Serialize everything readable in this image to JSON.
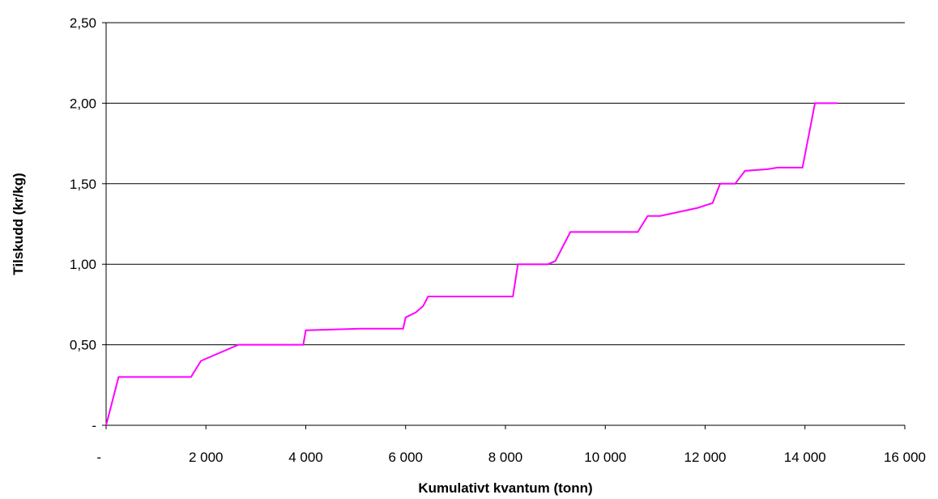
{
  "chart_data": {
    "type": "line",
    "title": "",
    "xlabel": "Kumulativt kvantum (tonn)",
    "ylabel": "Tilskudd (kr/kg)",
    "xlim": [
      0,
      16000
    ],
    "ylim": [
      0,
      2.5
    ],
    "x_ticks": [
      0,
      2000,
      4000,
      6000,
      8000,
      10000,
      12000,
      14000,
      16000
    ],
    "x_tick_labels": [
      "-",
      "2 000",
      "4 000",
      "6 000",
      "8 000",
      "10 000",
      "12 000",
      "14 000",
      "16 000"
    ],
    "y_ticks": [
      0,
      0.5,
      1.0,
      1.5,
      2.0,
      2.5
    ],
    "y_tick_labels": [
      "-",
      "0,50",
      "1,00",
      "1,50",
      "2,00",
      "2,50"
    ],
    "grid": true,
    "legend": "none",
    "series": [
      {
        "color": "#ff00ff",
        "x": [
          0,
          250,
          1700,
          1900,
          2650,
          3950,
          4000,
          5100,
          5950,
          6000,
          6200,
          6350,
          6450,
          6650,
          8150,
          8250,
          8850,
          9000,
          9300,
          9800,
          10650,
          10850,
          11100,
          11850,
          12150,
          12300,
          12600,
          12800,
          13250,
          13450,
          13950,
          14200,
          14650
        ],
        "y": [
          0,
          0.3,
          0.3,
          0.4,
          0.5,
          0.5,
          0.59,
          0.6,
          0.6,
          0.67,
          0.7,
          0.74,
          0.8,
          0.8,
          0.8,
          1.0,
          1.0,
          1.02,
          1.2,
          1.2,
          1.2,
          1.3,
          1.3,
          1.35,
          1.38,
          1.5,
          1.5,
          1.58,
          1.59,
          1.6,
          1.6,
          2.0,
          2.0
        ]
      }
    ]
  }
}
